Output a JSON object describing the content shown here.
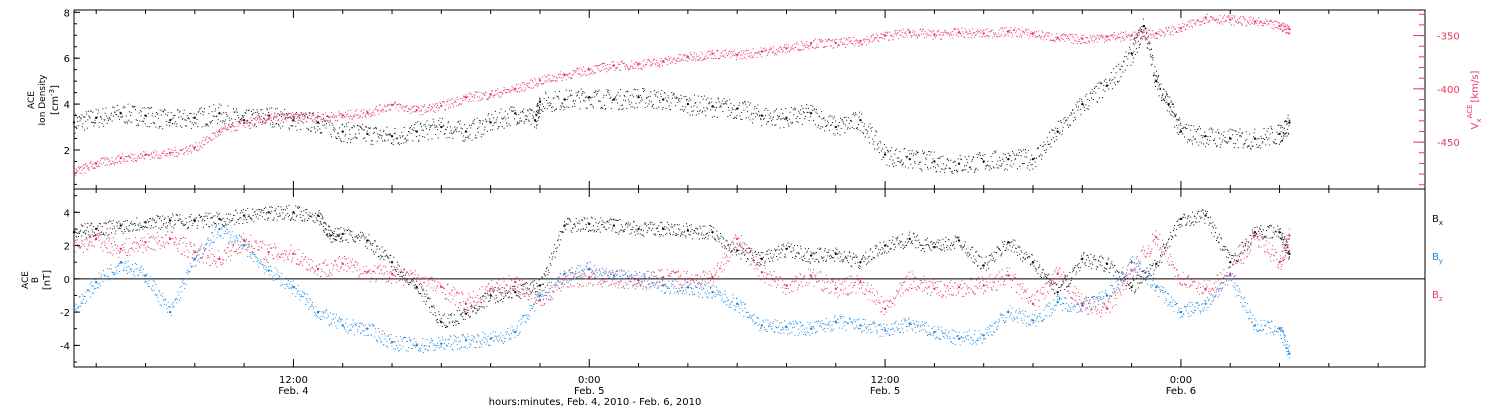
{
  "chart_data": [
    {
      "type": "scatter",
      "panel": "top",
      "xlabel": "hours:minutes, Feb.  4, 2010 - Feb.  6, 2010",
      "x_ticks": [
        {
          "time": "12:00",
          "date": "Feb. 4",
          "hours": 12
        },
        {
          "time": "0:00",
          "date": "Feb. 5",
          "hours": 24
        },
        {
          "time": "12:00",
          "date": "Feb. 5",
          "hours": 36
        },
        {
          "time": "0:00",
          "date": "Feb. 6",
          "hours": 48
        }
      ],
      "xlim_hours_from_feb4_0000": [
        3.1,
        57.9
      ],
      "ylabel": {
        "line1": "ACE",
        "line2": "Ion Density",
        "unit": "[cm",
        "unit_sup": "-3",
        "unit_end": "]"
      },
      "ylim": [
        0.3,
        8.1
      ],
      "y_ticks": [
        2,
        4,
        6,
        8
      ],
      "y2label": {
        "pre": "V",
        "sub": "x",
        "sup": "ACE",
        "unit": "[km/s]"
      },
      "y2lim": [
        -494,
        -326
      ],
      "y2_ticks": [
        -350,
        -400,
        -450
      ],
      "colors": {
        "density": "#111111",
        "vx": "#e8385f"
      },
      "series": [
        {
          "name": "",
          "color_key": "density",
          "axis": "left",
          "points": [
            [
              3.1,
              3.2
            ],
            [
              4.0,
              3.4
            ],
            [
              5.0,
              3.6
            ],
            [
              6.0,
              3.5
            ],
            [
              7.0,
              3.3
            ],
            [
              8.0,
              3.4
            ],
            [
              9.0,
              3.6
            ],
            [
              10.0,
              3.3
            ],
            [
              11.0,
              3.5
            ],
            [
              12.0,
              3.3
            ],
            [
              13.0,
              3.2
            ],
            [
              14.0,
              2.8
            ],
            [
              15.0,
              2.7
            ],
            [
              16.0,
              2.6
            ],
            [
              17.0,
              2.8
            ],
            [
              18.0,
              3.0
            ],
            [
              19.0,
              2.8
            ],
            [
              20.0,
              3.2
            ],
            [
              21.0,
              3.6
            ],
            [
              21.8,
              3.3
            ],
            [
              22.0,
              4.1
            ],
            [
              23.0,
              4.2
            ],
            [
              24.0,
              4.3
            ],
            [
              25.0,
              4.2
            ],
            [
              26.0,
              4.3
            ],
            [
              27.0,
              4.2
            ],
            [
              28.0,
              4.0
            ],
            [
              29.0,
              3.9
            ],
            [
              30.0,
              3.8
            ],
            [
              31.0,
              3.5
            ],
            [
              32.0,
              3.4
            ],
            [
              33.0,
              3.6
            ],
            [
              34.0,
              3.0
            ],
            [
              35.0,
              3.3
            ],
            [
              36.0,
              1.8
            ],
            [
              37.0,
              1.6
            ],
            [
              38.0,
              1.5
            ],
            [
              39.0,
              1.4
            ],
            [
              40.0,
              1.5
            ],
            [
              41.0,
              1.6
            ],
            [
              42.0,
              1.6
            ],
            [
              43.0,
              2.8
            ],
            [
              44.0,
              4.0
            ],
            [
              45.0,
              4.8
            ],
            [
              46.0,
              6.2
            ],
            [
              46.5,
              7.4
            ],
            [
              47.0,
              5.0
            ],
            [
              47.5,
              4.0
            ],
            [
              48.0,
              2.8
            ],
            [
              49.0,
              2.6
            ],
            [
              50.0,
              2.5
            ],
            [
              51.0,
              2.5
            ],
            [
              52.0,
              2.7
            ],
            [
              52.4,
              3.2
            ]
          ]
        },
        {
          "name": "",
          "color_key": "vx",
          "axis": "right",
          "points": [
            [
              3.1,
              -478
            ],
            [
              4.0,
              -470
            ],
            [
              5.0,
              -465
            ],
            [
              6.0,
              -462
            ],
            [
              7.0,
              -460
            ],
            [
              8.0,
              -455
            ],
            [
              9.0,
              -440
            ],
            [
              10.0,
              -432
            ],
            [
              11.0,
              -428
            ],
            [
              12.0,
              -426
            ],
            [
              13.0,
              -426
            ],
            [
              14.0,
              -425
            ],
            [
              15.0,
              -422
            ],
            [
              16.0,
              -415
            ],
            [
              17.0,
              -420
            ],
            [
              18.0,
              -416
            ],
            [
              19.0,
              -408
            ],
            [
              20.0,
              -405
            ],
            [
              21.0,
              -400
            ],
            [
              22.0,
              -392
            ],
            [
              23.0,
              -387
            ],
            [
              24.0,
              -382
            ],
            [
              25.0,
              -378
            ],
            [
              26.0,
              -377
            ],
            [
              27.0,
              -374
            ],
            [
              28.0,
              -370
            ],
            [
              29.0,
              -367
            ],
            [
              30.0,
              -368
            ],
            [
              31.0,
              -365
            ],
            [
              32.0,
              -362
            ],
            [
              33.0,
              -357
            ],
            [
              34.0,
              -357
            ],
            [
              35.0,
              -355
            ],
            [
              36.0,
              -350
            ],
            [
              37.0,
              -347
            ],
            [
              38.0,
              -349
            ],
            [
              39.0,
              -347
            ],
            [
              40.0,
              -348
            ],
            [
              41.0,
              -346
            ],
            [
              42.0,
              -348
            ],
            [
              43.0,
              -352
            ],
            [
              44.0,
              -353
            ],
            [
              45.0,
              -351
            ],
            [
              46.0,
              -350
            ],
            [
              47.0,
              -348
            ],
            [
              48.0,
              -343
            ],
            [
              49.0,
              -333
            ],
            [
              50.0,
              -335
            ],
            [
              51.0,
              -337
            ],
            [
              52.0,
              -341
            ],
            [
              52.4,
              -344
            ]
          ]
        }
      ]
    },
    {
      "type": "scatter",
      "panel": "bottom",
      "ylabel": {
        "line1": "ACE",
        "line2": "B",
        "unit": "[nT]"
      },
      "ylim": [
        -5.3,
        5.4
      ],
      "y_ticks": [
        -4,
        -2,
        0,
        2,
        4
      ],
      "zero_line": true,
      "legend_placement": "right",
      "colors": {
        "Bx": "#111111",
        "By": "#1b86e0",
        "Bz": "#e8385f"
      },
      "series": [
        {
          "name": "B",
          "name_sub": "x",
          "color_key": "Bx",
          "points": [
            [
              3.1,
              2.8
            ],
            [
              4.0,
              3.0
            ],
            [
              5.0,
              3.2
            ],
            [
              6.0,
              3.4
            ],
            [
              7.0,
              3.5
            ],
            [
              8.0,
              3.5
            ],
            [
              9.0,
              3.6
            ],
            [
              10.0,
              3.8
            ],
            [
              11.0,
              4.0
            ],
            [
              12.0,
              4.0
            ],
            [
              13.0,
              3.8
            ],
            [
              13.5,
              2.6
            ],
            [
              14.0,
              2.7
            ],
            [
              15.0,
              2.3
            ],
            [
              16.0,
              1.0
            ],
            [
              17.0,
              -0.5
            ],
            [
              18.0,
              -2.6
            ],
            [
              19.0,
              -2.1
            ],
            [
              20.0,
              -1.0
            ],
            [
              21.0,
              -0.8
            ],
            [
              22.0,
              -0.4
            ],
            [
              23.0,
              3.2
            ],
            [
              24.0,
              3.3
            ],
            [
              25.0,
              3.2
            ],
            [
              26.0,
              3.0
            ],
            [
              27.0,
              3.0
            ],
            [
              28.0,
              2.9
            ],
            [
              29.0,
              2.8
            ],
            [
              30.0,
              1.7
            ],
            [
              31.0,
              1.2
            ],
            [
              32.0,
              1.8
            ],
            [
              33.0,
              1.4
            ],
            [
              34.0,
              1.5
            ],
            [
              35.0,
              1.0
            ],
            [
              36.0,
              2.0
            ],
            [
              37.0,
              2.4
            ],
            [
              38.0,
              1.9
            ],
            [
              39.0,
              2.3
            ],
            [
              40.0,
              0.8
            ],
            [
              41.0,
              2.2
            ],
            [
              42.0,
              1.0
            ],
            [
              43.0,
              -0.8
            ],
            [
              44.0,
              1.2
            ],
            [
              45.0,
              0.9
            ],
            [
              46.0,
              -0.5
            ],
            [
              47.0,
              0.9
            ],
            [
              48.0,
              3.6
            ],
            [
              49.0,
              3.8
            ],
            [
              50.0,
              1.0
            ],
            [
              51.0,
              2.8
            ],
            [
              52.0,
              2.8
            ],
            [
              52.4,
              1.5
            ]
          ]
        },
        {
          "name": "B",
          "name_sub": "y",
          "color_key": "By",
          "points": [
            [
              3.1,
              -1.8
            ],
            [
              4.0,
              -0.2
            ],
            [
              5.0,
              1.0
            ],
            [
              6.0,
              0.2
            ],
            [
              7.0,
              -2.0
            ],
            [
              8.0,
              1.2
            ],
            [
              9.0,
              3.0
            ],
            [
              10.0,
              2.0
            ],
            [
              11.0,
              0.5
            ],
            [
              12.0,
              -0.5
            ],
            [
              13.0,
              -2.0
            ],
            [
              14.0,
              -2.8
            ],
            [
              15.0,
              -3.0
            ],
            [
              16.0,
              -3.8
            ],
            [
              17.0,
              -4.0
            ],
            [
              18.0,
              -3.9
            ],
            [
              19.0,
              -3.7
            ],
            [
              20.0,
              -3.6
            ],
            [
              21.0,
              -3.2
            ],
            [
              22.0,
              -1.0
            ],
            [
              23.0,
              0.3
            ],
            [
              24.0,
              0.6
            ],
            [
              25.0,
              0.2
            ],
            [
              26.0,
              0.0
            ],
            [
              27.0,
              -0.4
            ],
            [
              28.0,
              -0.5
            ],
            [
              29.0,
              -0.8
            ],
            [
              30.0,
              -1.5
            ],
            [
              31.0,
              -2.8
            ],
            [
              32.0,
              -2.9
            ],
            [
              33.0,
              -3.0
            ],
            [
              34.0,
              -2.6
            ],
            [
              35.0,
              -2.8
            ],
            [
              36.0,
              -3.1
            ],
            [
              37.0,
              -2.7
            ],
            [
              38.0,
              -3.2
            ],
            [
              39.0,
              -3.6
            ],
            [
              40.0,
              -3.4
            ],
            [
              41.0,
              -2.0
            ],
            [
              42.0,
              -2.5
            ],
            [
              43.0,
              -1.4
            ],
            [
              44.0,
              -1.6
            ],
            [
              45.0,
              -1.0
            ],
            [
              46.0,
              1.0
            ],
            [
              47.0,
              -0.5
            ],
            [
              48.0,
              -2.0
            ],
            [
              49.0,
              -1.5
            ],
            [
              50.0,
              0.2
            ],
            [
              51.0,
              -2.8
            ],
            [
              52.0,
              -3.0
            ],
            [
              52.4,
              -4.5
            ]
          ]
        },
        {
          "name": "B",
          "name_sub": "z",
          "color_key": "Bz",
          "points": [
            [
              3.1,
              2.0
            ],
            [
              4.0,
              2.4
            ],
            [
              5.0,
              1.8
            ],
            [
              6.0,
              2.2
            ],
            [
              7.0,
              2.4
            ],
            [
              8.0,
              1.6
            ],
            [
              9.0,
              1.2
            ],
            [
              10.0,
              2.3
            ],
            [
              11.0,
              1.6
            ],
            [
              12.0,
              1.5
            ],
            [
              13.0,
              0.6
            ],
            [
              14.0,
              0.9
            ],
            [
              15.0,
              0.4
            ],
            [
              16.0,
              0.3
            ],
            [
              17.0,
              0.0
            ],
            [
              18.0,
              -0.5
            ],
            [
              19.0,
              -1.5
            ],
            [
              20.0,
              -0.6
            ],
            [
              21.0,
              -0.2
            ],
            [
              22.0,
              -1.3
            ],
            [
              23.0,
              0.0
            ],
            [
              24.0,
              0.1
            ],
            [
              25.0,
              0.0
            ],
            [
              26.0,
              -0.1
            ],
            [
              27.0,
              0.1
            ],
            [
              28.0,
              0.0
            ],
            [
              29.0,
              0.1
            ],
            [
              30.0,
              2.4
            ],
            [
              31.0,
              0.4
            ],
            [
              32.0,
              -0.4
            ],
            [
              33.0,
              0.2
            ],
            [
              34.0,
              -0.6
            ],
            [
              35.0,
              -0.2
            ],
            [
              36.0,
              -1.8
            ],
            [
              37.0,
              0.0
            ],
            [
              38.0,
              -0.6
            ],
            [
              39.0,
              -0.5
            ],
            [
              40.0,
              -0.4
            ],
            [
              41.0,
              0.2
            ],
            [
              42.0,
              -1.5
            ],
            [
              43.0,
              0.3
            ],
            [
              44.0,
              -1.5
            ],
            [
              45.0,
              -1.8
            ],
            [
              46.0,
              0.5
            ],
            [
              47.0,
              2.5
            ],
            [
              48.0,
              0.0
            ],
            [
              49.0,
              -0.6
            ],
            [
              50.0,
              0.3
            ],
            [
              51.0,
              2.6
            ],
            [
              52.0,
              1.0
            ],
            [
              52.4,
              2.6
            ]
          ]
        }
      ]
    }
  ]
}
